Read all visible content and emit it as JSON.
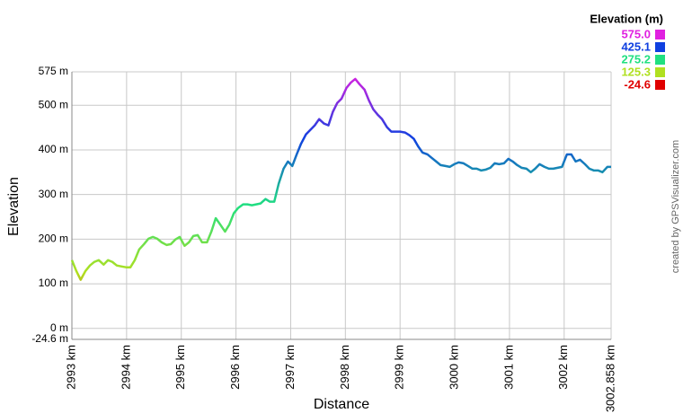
{
  "chart_data": {
    "type": "line",
    "y_label": "Elevation",
    "x_label": "Distance",
    "legend_title": "Elevation (m)",
    "credit": "created by GPSVisualizer.com",
    "color_scale": [
      {
        "value": 575.0,
        "label": "575.0",
        "color": "#e020e0"
      },
      {
        "value": 425.1,
        "label": "425.1",
        "color": "#1040e0"
      },
      {
        "value": 275.2,
        "label": "275.2",
        "color": "#20e080"
      },
      {
        "value": 125.3,
        "label": "125.3",
        "color": "#b0e020"
      },
      {
        "value": -24.6,
        "label": "-24.6",
        "color": "#e00000"
      }
    ],
    "x": [
      2993.0,
      2993.08,
      2993.16,
      2993.25,
      2993.33,
      2993.41,
      2993.49,
      2993.58,
      2993.66,
      2993.74,
      2993.82,
      2993.9,
      2993.99,
      2994.07,
      2994.15,
      2994.23,
      2994.32,
      2994.4,
      2994.48,
      2994.56,
      2994.64,
      2994.73,
      2994.81,
      2994.89,
      2994.97,
      2995.06,
      2995.14,
      2995.22,
      2995.3,
      2995.38,
      2995.47,
      2995.55,
      2995.63,
      2995.71,
      2995.8,
      2995.88,
      2995.96,
      2996.04,
      2996.13,
      2996.21,
      2996.29,
      2996.37,
      2996.45,
      2996.54,
      2996.62,
      2996.7,
      2996.78,
      2996.87,
      2996.95,
      2997.03,
      2997.11,
      2997.19,
      2997.28,
      2997.36,
      2997.44,
      2997.52,
      2997.61,
      2997.69,
      2997.77,
      2997.85,
      2997.93,
      2998.02,
      2998.1,
      2998.18,
      2998.26,
      2998.35,
      2998.43,
      2998.51,
      2998.59,
      2998.67,
      2998.76,
      2998.84,
      2998.92,
      2999.0,
      2999.09,
      2999.17,
      2999.25,
      2999.33,
      2999.41,
      2999.5,
      2999.58,
      2999.66,
      2999.74,
      2999.83,
      2999.91,
      2999.99,
      3000.07,
      3000.16,
      3000.24,
      3000.32,
      3000.4,
      3000.48,
      3000.57,
      3000.65,
      3000.73,
      3000.81,
      3000.9,
      3000.98,
      3001.06,
      3001.14,
      3001.22,
      3001.31,
      3001.39,
      3001.47,
      3001.55,
      3001.64,
      3001.72,
      3001.8,
      3001.88,
      3001.96,
      3002.05,
      3002.13,
      3002.21,
      3002.29,
      3002.38,
      3002.46,
      3002.54,
      3002.62,
      3002.7,
      3002.79,
      3002.858
    ],
    "values": [
      153,
      129,
      109,
      129,
      141,
      149,
      153,
      143,
      153,
      149,
      141,
      139,
      137,
      137,
      153,
      177,
      189,
      201,
      205,
      201,
      193,
      187,
      189,
      199,
      205,
      185,
      193,
      207,
      209,
      193,
      193,
      217,
      247,
      233,
      217,
      233,
      258,
      270,
      278,
      278,
      276,
      278,
      280,
      290,
      284,
      284,
      324,
      358,
      374,
      364,
      390,
      414,
      435,
      445,
      455,
      469,
      459,
      455,
      485,
      505,
      515,
      539,
      551,
      559,
      547,
      535,
      511,
      491,
      479,
      469,
      451,
      441,
      441,
      441,
      439,
      433,
      425,
      408,
      394,
      390,
      382,
      374,
      366,
      364,
      362,
      368,
      372,
      370,
      364,
      358,
      358,
      354,
      356,
      360,
      370,
      368,
      370,
      380,
      374,
      366,
      360,
      358,
      350,
      358,
      368,
      362,
      358,
      358,
      360,
      362,
      390,
      390,
      374,
      378,
      368,
      358,
      354,
      354,
      350,
      362,
      362
    ],
    "xlim": [
      2993,
      3002.858
    ],
    "ylim": [
      -24.6,
      575
    ],
    "xticks": [
      {
        "value": 2993,
        "label": "2993 km"
      },
      {
        "value": 2994,
        "label": "2994 km"
      },
      {
        "value": 2995,
        "label": "2995 km"
      },
      {
        "value": 2996,
        "label": "2996 km"
      },
      {
        "value": 2997,
        "label": "2997 km"
      },
      {
        "value": 2998,
        "label": "2998 km"
      },
      {
        "value": 2999,
        "label": "2999 km"
      },
      {
        "value": 3000,
        "label": "3000 km"
      },
      {
        "value": 3001,
        "label": "3001 km"
      },
      {
        "value": 3002,
        "label": "3002 km"
      },
      {
        "value": 3002.858,
        "label": "3002.858 km"
      }
    ],
    "yticks": [
      {
        "value": 575,
        "label": "575 m"
      },
      {
        "value": 500,
        "label": "500 m"
      },
      {
        "value": 400,
        "label": "400 m"
      },
      {
        "value": 300,
        "label": "300 m"
      },
      {
        "value": 200,
        "label": "200 m"
      },
      {
        "value": 100,
        "label": "100 m"
      },
      {
        "value": 0,
        "label": "0 m"
      },
      {
        "value": -24.6,
        "label": "-24.6 m"
      }
    ],
    "grid": true
  }
}
